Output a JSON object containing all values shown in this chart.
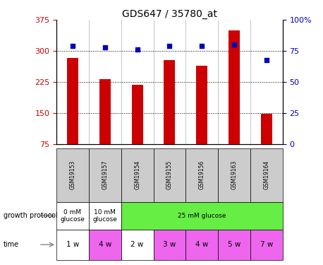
{
  "title": "GDS647 / 35780_at",
  "samples": [
    "GSM19153",
    "GSM19157",
    "GSM19154",
    "GSM19155",
    "GSM19156",
    "GSM19163",
    "GSM19164"
  ],
  "bar_values": [
    283,
    232,
    218,
    278,
    265,
    350,
    148
  ],
  "percentile_values": [
    79,
    78,
    76,
    79,
    79,
    80,
    68
  ],
  "ylim_left": [
    75,
    375
  ],
  "ylim_right": [
    0,
    100
  ],
  "yticks_left": [
    75,
    150,
    225,
    300,
    375
  ],
  "yticks_right": [
    0,
    25,
    50,
    75,
    100
  ],
  "bar_color": "#cc0000",
  "dot_color": "#0000bb",
  "bar_width": 0.35,
  "hline_values": [
    150,
    225,
    300
  ],
  "growth_protocol_groups": [
    {
      "label": "0 mM\nglucose",
      "start": 0,
      "end": 1,
      "color": "#ffffff"
    },
    {
      "label": "10 mM\nglucose",
      "start": 1,
      "end": 2,
      "color": "#ffffff"
    },
    {
      "label": "25 mM glucose",
      "start": 2,
      "end": 7,
      "color": "#66ee44"
    }
  ],
  "time_labels": [
    "1 w",
    "4 w",
    "2 w",
    "3 w",
    "4 w",
    "5 w",
    "7 w"
  ],
  "time_colors": [
    "#ffffff",
    "#ee66ee",
    "#ffffff",
    "#ee66ee",
    "#ee66ee",
    "#ee66ee",
    "#ee66ee"
  ],
  "sample_bg_color": "#cccccc",
  "left_label_color": "#cc0000",
  "right_label_color": "#0000bb",
  "legend_count_color": "#cc0000",
  "legend_dot_color": "#0000bb"
}
